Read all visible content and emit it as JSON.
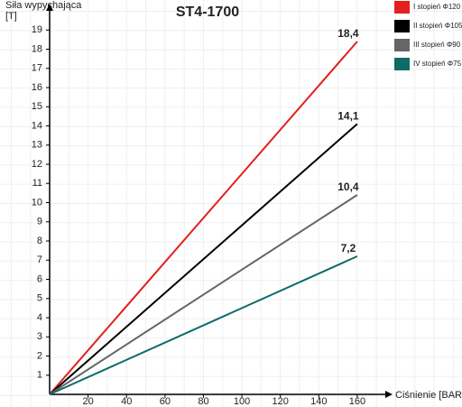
{
  "chart_data": {
    "type": "line",
    "title": "ST4-1700",
    "y_label": [
      "Siła wypychająca",
      "[T]"
    ],
    "x_label": "Ciśnienie [BAR]",
    "xlim": [
      0,
      176
    ],
    "ylim": [
      0,
      20
    ],
    "xticks": [
      20,
      40,
      60,
      80,
      100,
      120,
      140,
      160
    ],
    "yticks": [
      1,
      2,
      3,
      4,
      5,
      6,
      7,
      8,
      9,
      10,
      11,
      12,
      13,
      14,
      15,
      16,
      17,
      18,
      19
    ],
    "x": [
      0,
      160
    ],
    "series": [
      {
        "name": "I stopień Φ120",
        "color": "#e3201b",
        "values": [
          0,
          18.4
        ],
        "value_labels": [
          null,
          "18,4"
        ]
      },
      {
        "name": "II stopień Φ105",
        "color": "#000000",
        "values": [
          0,
          14.1
        ],
        "value_labels": [
          null,
          "14,1"
        ]
      },
      {
        "name": "III stopień Φ90",
        "color": "#666666",
        "values": [
          0,
          10.4
        ],
        "value_labels": [
          null,
          "10,4"
        ]
      },
      {
        "name": "IV stopień Φ75",
        "color": "#0e6b6b",
        "values": [
          0,
          7.2
        ],
        "value_labels": [
          null,
          "7,2"
        ]
      }
    ]
  }
}
